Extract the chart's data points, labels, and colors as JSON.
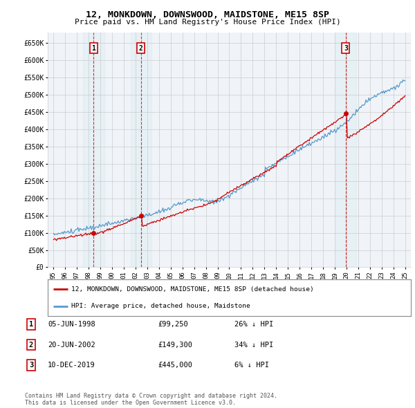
{
  "title": "12, MONKDOWN, DOWNSWOOD, MAIDSTONE, ME15 8SP",
  "subtitle": "Price paid vs. HM Land Registry's House Price Index (HPI)",
  "ylabel_ticks": [
    "£0",
    "£50K",
    "£100K",
    "£150K",
    "£200K",
    "£250K",
    "£300K",
    "£350K",
    "£400K",
    "£450K",
    "£500K",
    "£550K",
    "£600K",
    "£650K"
  ],
  "ytick_values": [
    0,
    50000,
    100000,
    150000,
    200000,
    250000,
    300000,
    350000,
    400000,
    450000,
    500000,
    550000,
    600000,
    650000
  ],
  "xlim": [
    1994.5,
    2025.5
  ],
  "ylim": [
    0,
    680000
  ],
  "sale_prices": [
    99250,
    149300,
    445000
  ],
  "sale_labels": [
    "1",
    "2",
    "3"
  ],
  "annotation1_date": "05-JUN-1998",
  "annotation1_price": "£99,250",
  "annotation1_pct": "26% ↓ HPI",
  "annotation2_date": "20-JUN-2002",
  "annotation2_price": "£149,300",
  "annotation2_pct": "34% ↓ HPI",
  "annotation3_date": "10-DEC-2019",
  "annotation3_price": "£445,000",
  "annotation3_pct": "6% ↓ HPI",
  "legend_line1": "12, MONKDOWN, DOWNSWOOD, MAIDSTONE, ME15 8SP (detached house)",
  "legend_line2": "HPI: Average price, detached house, Maidstone",
  "footnote": "Contains HM Land Registry data © Crown copyright and database right 2024.\nThis data is licensed under the Open Government Licence v3.0.",
  "line_color_red": "#cc0000",
  "line_color_blue": "#5599cc",
  "grid_color": "#cccccc",
  "bg_color": "#ffffff",
  "dashed_color": "#cc0000",
  "box_color": "#cc0000"
}
